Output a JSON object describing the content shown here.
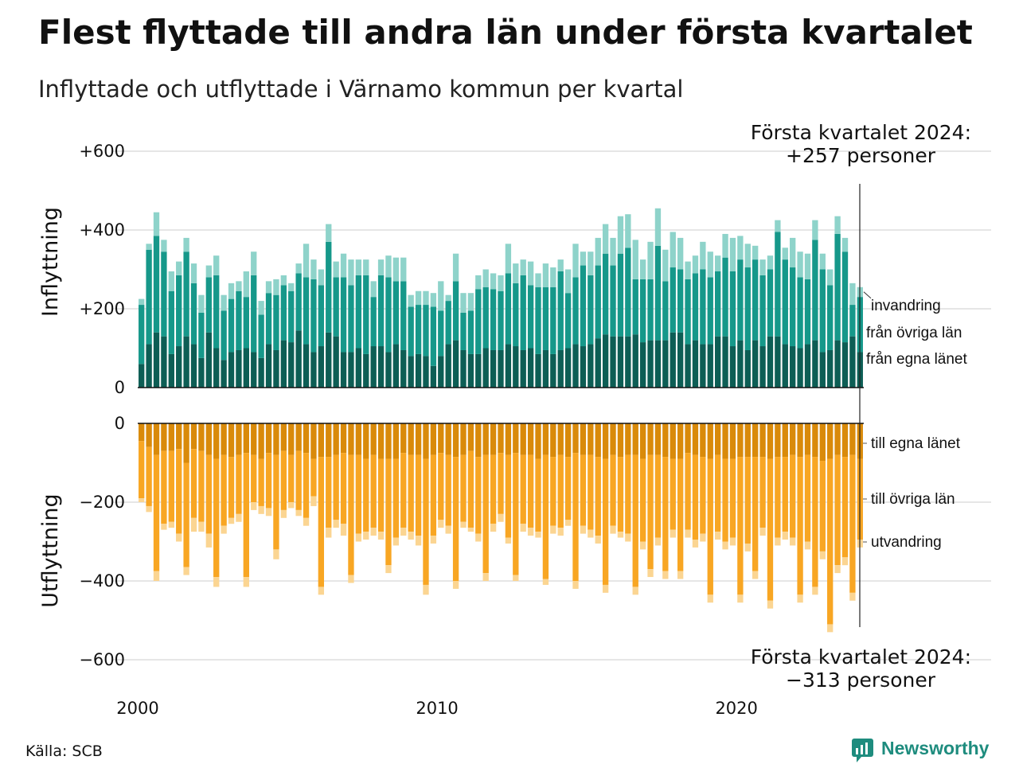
{
  "header": {
    "title": "Flest flyttade till andra län under första kvartalet",
    "subtitle": "Inflyttade och utflyttade i Värnamo kommun per kvartal"
  },
  "annotations": {
    "top_line1": "Första kvartalet 2024:",
    "top_line2": "+257 personer",
    "bottom_line1": "Första kvartalet 2024:",
    "bottom_line2": "−313 personer"
  },
  "footer": {
    "source": "Källa: SCB",
    "brand": "Newsworthy"
  },
  "colors": {
    "in_own_county": "#0d5e55",
    "in_other_counties": "#16988a",
    "in_immigration": "#8ed3ca",
    "out_own_county": "#d98a0a",
    "out_other_counties": "#f8a623",
    "out_emigration": "#fbd592",
    "grid": "#dddddd",
    "brand": "#1e8c7e"
  },
  "chart_data": [
    {
      "type": "bar",
      "stacked": true,
      "panel": "top",
      "ylabel": "Inflyttning",
      "ylim": [
        0,
        600
      ],
      "yticks": [
        {
          "v": 0,
          "label": "0"
        },
        {
          "v": 200,
          "label": "+200"
        },
        {
          "v": 400,
          "label": "+400"
        },
        {
          "v": 600,
          "label": "+600"
        }
      ],
      "x_start": 2000,
      "x_step_per_quarter": 0.25,
      "xticks": [
        {
          "v": 2000,
          "label": "2000"
        },
        {
          "v": 2010,
          "label": "2010"
        },
        {
          "v": 2020,
          "label": "2020"
        }
      ],
      "grid": true,
      "series": [
        {
          "name": "från egna länet",
          "values": [
            60,
            110,
            140,
            130,
            85,
            105,
            130,
            110,
            75,
            140,
            100,
            70,
            90,
            95,
            100,
            90,
            75,
            110,
            95,
            120,
            115,
            145,
            110,
            90,
            105,
            140,
            130,
            90,
            90,
            100,
            85,
            105,
            105,
            90,
            110,
            95,
            80,
            85,
            80,
            55,
            80,
            110,
            120,
            95,
            85,
            85,
            100,
            95,
            95,
            110,
            105,
            95,
            100,
            85,
            95,
            85,
            95,
            100,
            110,
            105,
            110,
            125,
            135,
            130,
            130,
            130,
            135,
            115,
            120,
            120,
            120,
            140,
            140,
            110,
            120,
            110,
            110,
            130,
            130,
            105,
            120,
            95,
            120,
            105,
            130,
            130,
            110,
            105,
            100,
            110,
            120,
            90,
            95,
            120,
            115,
            130,
            90
          ]
        },
        {
          "name": "från övriga län",
          "values": [
            150,
            240,
            245,
            215,
            160,
            180,
            215,
            155,
            115,
            140,
            185,
            125,
            135,
            150,
            130,
            195,
            110,
            130,
            140,
            140,
            130,
            145,
            170,
            185,
            155,
            230,
            150,
            190,
            170,
            185,
            200,
            125,
            180,
            190,
            160,
            175,
            125,
            125,
            130,
            150,
            115,
            110,
            150,
            95,
            110,
            165,
            155,
            155,
            150,
            180,
            160,
            190,
            160,
            170,
            160,
            170,
            200,
            140,
            170,
            205,
            175,
            185,
            205,
            180,
            210,
            225,
            140,
            160,
            155,
            240,
            150,
            165,
            160,
            165,
            170,
            190,
            170,
            165,
            200,
            190,
            205,
            210,
            205,
            180,
            170,
            265,
            215,
            200,
            180,
            165,
            255,
            210,
            165,
            270,
            230,
            80,
            140
          ]
        },
        {
          "name": "invandring",
          "values": [
            15,
            15,
            60,
            30,
            50,
            35,
            35,
            50,
            45,
            30,
            50,
            40,
            40,
            25,
            65,
            60,
            35,
            30,
            40,
            25,
            20,
            25,
            85,
            50,
            40,
            45,
            40,
            60,
            65,
            40,
            40,
            40,
            40,
            55,
            60,
            60,
            30,
            35,
            35,
            35,
            75,
            15,
            70,
            50,
            45,
            35,
            45,
            40,
            40,
            75,
            50,
            40,
            60,
            35,
            60,
            50,
            30,
            60,
            85,
            35,
            60,
            70,
            75,
            70,
            95,
            85,
            100,
            50,
            95,
            95,
            80,
            90,
            80,
            45,
            45,
            70,
            65,
            40,
            60,
            85,
            60,
            60,
            35,
            40,
            35,
            30,
            30,
            75,
            65,
            65,
            50,
            40,
            40,
            45,
            35,
            55,
            25
          ]
        }
      ]
    },
    {
      "type": "bar",
      "stacked": true,
      "panel": "bottom",
      "ylabel": "Utflyttning",
      "ylim": [
        -600,
        0
      ],
      "yticks": [
        {
          "v": 0,
          "label": "0"
        },
        {
          "v": -200,
          "label": "−200"
        },
        {
          "v": -400,
          "label": "−400"
        },
        {
          "v": -600,
          "label": "−600"
        }
      ],
      "x_start": 2000,
      "x_step_per_quarter": 0.25,
      "xticks": [
        {
          "v": 2000,
          "label": "2000"
        },
        {
          "v": 2010,
          "label": "2010"
        },
        {
          "v": 2020,
          "label": "2020"
        }
      ],
      "grid": true,
      "series": [
        {
          "name": "till egna länet",
          "values": [
            -45,
            -60,
            -80,
            -70,
            -70,
            -65,
            -100,
            -65,
            -70,
            -80,
            -90,
            -80,
            -85,
            -80,
            -75,
            -80,
            -90,
            -75,
            -80,
            -70,
            -80,
            -70,
            -75,
            -90,
            -85,
            -85,
            -80,
            -75,
            -80,
            -80,
            -90,
            -80,
            -90,
            -90,
            -90,
            -75,
            -80,
            -80,
            -90,
            -80,
            -75,
            -80,
            -85,
            -80,
            -70,
            -85,
            -80,
            -80,
            -75,
            -80,
            -75,
            -80,
            -80,
            -90,
            -80,
            -85,
            -80,
            -85,
            -75,
            -80,
            -80,
            -85,
            -90,
            -80,
            -85,
            -80,
            -80,
            -90,
            -80,
            -80,
            -85,
            -90,
            -90,
            -75,
            -80,
            -85,
            -90,
            -80,
            -90,
            -90,
            -85,
            -85,
            -85,
            -85,
            -90,
            -85,
            -85,
            -80,
            -85,
            -80,
            -85,
            -95,
            -90,
            -80,
            -85,
            -80,
            -90
          ]
        },
        {
          "name": "till övriga län",
          "values": [
            -145,
            -150,
            -295,
            -185,
            -180,
            -215,
            -265,
            -175,
            -180,
            -200,
            -300,
            -180,
            -155,
            -150,
            -315,
            -120,
            -120,
            -140,
            -240,
            -150,
            -120,
            -150,
            -165,
            -95,
            -330,
            -180,
            -165,
            -180,
            -305,
            -200,
            -185,
            -185,
            -185,
            -270,
            -200,
            -190,
            -195,
            -205,
            -320,
            -205,
            -170,
            -180,
            -315,
            -170,
            -195,
            -195,
            -300,
            -175,
            -155,
            -210,
            -310,
            -175,
            -185,
            -185,
            -315,
            -175,
            -185,
            -160,
            -325,
            -180,
            -190,
            -200,
            -320,
            -180,
            -190,
            -200,
            -335,
            -210,
            -290,
            -210,
            -290,
            -180,
            -285,
            -195,
            -215,
            -195,
            -345,
            -195,
            -210,
            -200,
            -350,
            -220,
            -290,
            -180,
            -360,
            -205,
            -190,
            -210,
            -350,
            -220,
            -330,
            -230,
            -420,
            -280,
            -255,
            -350,
            -205
          ]
        },
        {
          "name": "utvandring",
          "values": [
            -10,
            -15,
            -25,
            -15,
            -15,
            -20,
            -20,
            -35,
            -25,
            -35,
            -25,
            -20,
            -15,
            -20,
            -25,
            -20,
            -20,
            -20,
            -25,
            -20,
            -15,
            -15,
            -20,
            -25,
            -20,
            -25,
            -20,
            -30,
            -20,
            -20,
            -20,
            -20,
            -20,
            -20,
            -20,
            -20,
            -20,
            -25,
            -25,
            -20,
            -20,
            -20,
            -20,
            -15,
            -10,
            -20,
            -20,
            -20,
            -20,
            -15,
            -15,
            -20,
            -20,
            -15,
            -15,
            -20,
            -20,
            -15,
            -20,
            -20,
            -20,
            -20,
            -20,
            -20,
            -15,
            -20,
            -20,
            -20,
            -20,
            -20,
            -20,
            -20,
            -20,
            -20,
            -20,
            -20,
            -20,
            -20,
            -20,
            -20,
            -20,
            -20,
            -20,
            -20,
            -20,
            -20,
            -20,
            -20,
            -20,
            -20,
            -20,
            -20,
            -20,
            -20,
            -20,
            -20,
            -20
          ]
        }
      ]
    }
  ]
}
